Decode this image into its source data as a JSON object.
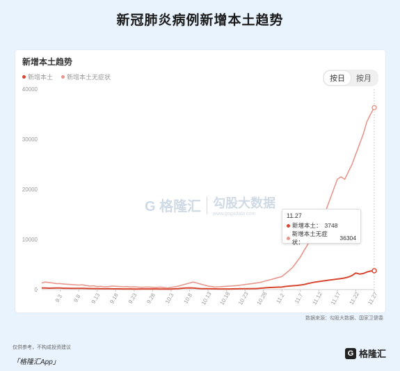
{
  "page": {
    "title": "新冠肺炎病例新增本土趋势",
    "footnote": "仅供参考，不构成投资建议",
    "app_label": "「格隆汇App」",
    "logo_text": "格隆汇",
    "logo_glyph": "G"
  },
  "card": {
    "title": "新增本土趋势",
    "toggle": {
      "day": "按日",
      "month": "按月"
    },
    "source": "数据来源：勾股大数据、国家卫健委",
    "watermark": {
      "logo": "格隆汇",
      "cn": "勾股大数据",
      "en": "www.gogudata.com",
      "glyph": "G"
    }
  },
  "tooltip": {
    "date": "11.27",
    "rows": [
      {
        "label": "新增本土：",
        "value": "3748",
        "color": "#d9452e"
      },
      {
        "label": "新增本土无症状：",
        "value": "36304",
        "color": "#e8958b"
      }
    ]
  },
  "colors": {
    "local": "#d9452e",
    "asymptomatic": "#e8958b",
    "axis": "#cccccc",
    "grid": "#eeeeee"
  },
  "chart_data": {
    "type": "line",
    "title": "新增本土趋势",
    "xlabel": "",
    "ylabel": "",
    "ylim": [
      0,
      40000
    ],
    "yticks": [
      0,
      10000,
      20000,
      30000,
      40000
    ],
    "xticks": [
      "9.3",
      "9.8",
      "9.13",
      "9.18",
      "9.23",
      "9.28",
      "10.3",
      "10.8",
      "10.13",
      "10.18",
      "10.23",
      "10.28",
      "11.2",
      "11.7",
      "11.12",
      "11.17",
      "11.22",
      "11.27"
    ],
    "grid": false,
    "legend": "top-left",
    "x": [
      "8.29",
      "8.30",
      "8.31",
      "9.1",
      "9.2",
      "9.3",
      "9.4",
      "9.5",
      "9.6",
      "9.7",
      "9.8",
      "9.9",
      "9.10",
      "9.11",
      "9.12",
      "9.13",
      "9.14",
      "9.15",
      "9.16",
      "9.17",
      "9.18",
      "9.19",
      "9.20",
      "9.21",
      "9.22",
      "9.23",
      "9.24",
      "9.25",
      "9.26",
      "9.27",
      "9.28",
      "9.29",
      "9.30",
      "10.1",
      "10.2",
      "10.3",
      "10.4",
      "10.5",
      "10.6",
      "10.7",
      "10.8",
      "10.9",
      "10.10",
      "10.11",
      "10.12",
      "10.13",
      "10.14",
      "10.15",
      "10.16",
      "10.17",
      "10.18",
      "10.19",
      "10.20",
      "10.21",
      "10.22",
      "10.23",
      "10.24",
      "10.25",
      "10.26",
      "10.27",
      "10.28",
      "10.29",
      "10.30",
      "10.31",
      "11.1",
      "11.2",
      "11.3",
      "11.4",
      "11.5",
      "11.6",
      "11.7",
      "11.8",
      "11.9",
      "11.10",
      "11.11",
      "11.12",
      "11.13",
      "11.14",
      "11.15",
      "11.16",
      "11.17",
      "11.18",
      "11.19",
      "11.20",
      "11.21",
      "11.22",
      "11.23",
      "11.24",
      "11.25",
      "11.26",
      "11.27"
    ],
    "series": [
      {
        "name": "新增本土",
        "color": "#d9452e",
        "values": [
          300,
          320,
          280,
          290,
          300,
          310,
          270,
          260,
          250,
          240,
          250,
          230,
          220,
          210,
          200,
          190,
          180,
          170,
          160,
          150,
          140,
          140,
          130,
          120,
          120,
          110,
          110,
          120,
          120,
          130,
          130,
          120,
          110,
          100,
          100,
          110,
          150,
          200,
          260,
          300,
          330,
          300,
          250,
          200,
          180,
          160,
          150,
          140,
          130,
          120,
          120,
          130,
          140,
          150,
          160,
          170,
          180,
          190,
          200,
          260,
          320,
          380,
          420,
          450,
          480,
          500,
          620,
          700,
          760,
          820,
          900,
          1000,
          1200,
          1350,
          1500,
          1600,
          1700,
          1800,
          1900,
          2000,
          2100,
          2200,
          2300,
          2500,
          2800,
          3300,
          3100,
          3200,
          3500,
          3700,
          3748
        ]
      },
      {
        "name": "新增本土无症状",
        "color": "#e8958b",
        "values": [
          1300,
          1500,
          1400,
          1300,
          1200,
          1200,
          1100,
          1050,
          1000,
          950,
          900,
          950,
          800,
          700,
          750,
          600,
          650,
          550,
          600,
          700,
          650,
          600,
          550,
          600,
          500,
          550,
          500,
          450,
          500,
          500,
          450,
          400,
          500,
          400,
          300,
          450,
          550,
          700,
          900,
          1100,
          1300,
          1500,
          1300,
          1100,
          900,
          700,
          600,
          500,
          550,
          600,
          650,
          700,
          750,
          800,
          900,
          1000,
          1100,
          1200,
          1300,
          1400,
          1600,
          1800,
          2000,
          2200,
          2400,
          2600,
          3200,
          3800,
          4500,
          5500,
          6500,
          7800,
          9000,
          10500,
          12000,
          13000,
          14500,
          16000,
          18000,
          20000,
          22000,
          22500,
          22000,
          23500,
          25000,
          27000,
          29000,
          31000,
          33500,
          35000,
          36304
        ]
      }
    ]
  }
}
